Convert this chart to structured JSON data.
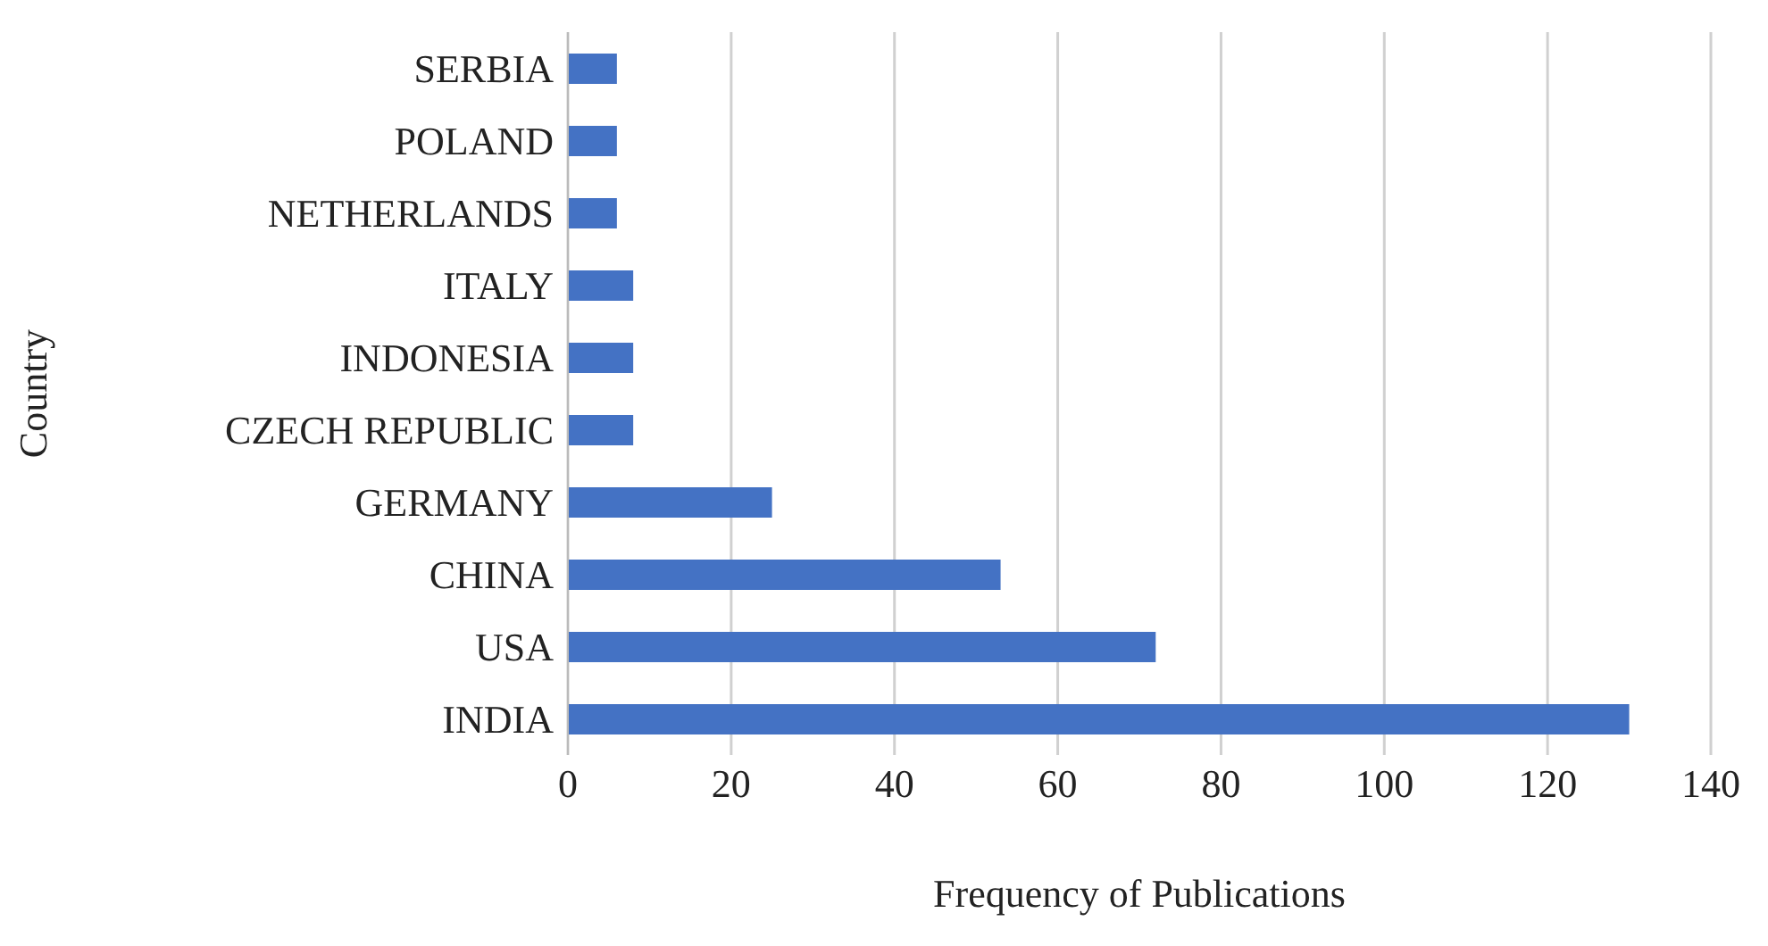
{
  "chart_data": {
    "type": "bar",
    "orientation": "horizontal",
    "xlabel": "Frequency of Publications",
    "ylabel": "Country",
    "categories": [
      "SERBIA",
      "POLAND",
      "NETHERLANDS",
      "ITALY",
      "INDONESIA",
      "CZECH REPUBLIC",
      "GERMANY",
      "CHINA",
      "USA",
      "INDIA"
    ],
    "values": [
      6,
      6,
      6,
      8,
      8,
      8,
      25,
      53,
      72,
      130
    ],
    "color": "#4472c4",
    "xlim": [
      0,
      140
    ],
    "xticks": [
      0,
      20,
      40,
      60,
      80,
      100,
      120,
      140
    ],
    "grid": "x",
    "legend": false
  }
}
